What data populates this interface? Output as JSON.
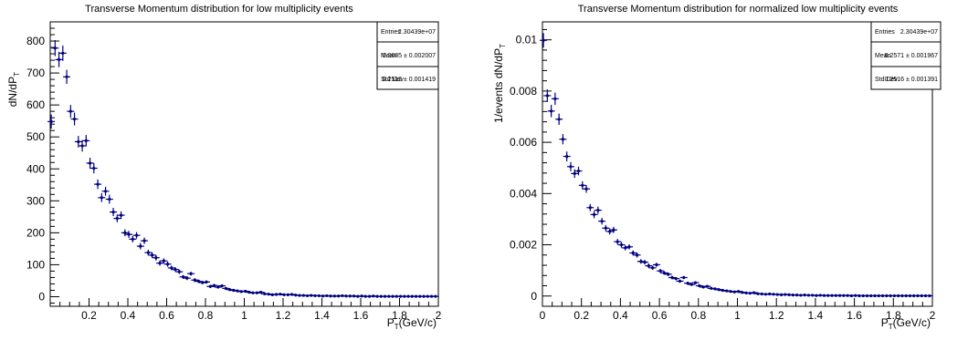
{
  "chart_data": [
    {
      "type": "scatter",
      "title": "Transverse Momentum distribution for low multiplicity events",
      "xlabel": "P_T(GeV/c)",
      "xlabel_main": "P",
      "xlabel_sub": "T",
      "xlabel_unit": "(GeV/c)",
      "ylabel": "dN/dP_T",
      "ylabel_main": "dN/dP",
      "ylabel_sub": "T",
      "xlim": [
        0.0,
        2.0
      ],
      "ylim": [
        -30,
        860
      ],
      "xticks": [
        "0.2",
        "0.4",
        "0.6",
        "0.8",
        "1",
        "1.2",
        "1.4",
        "1.6",
        "1.8",
        "2"
      ],
      "yticks": [
        "0",
        "100",
        "200",
        "300",
        "400",
        "500",
        "600",
        "700",
        "800"
      ],
      "xtick_values": [
        0.2,
        0.4,
        0.6,
        0.8,
        1.0,
        1.2,
        1.4,
        1.6,
        1.8,
        2.0
      ],
      "ytick_values": [
        0,
        100,
        200,
        300,
        400,
        500,
        600,
        700,
        800
      ],
      "stats": {
        "entries_label": "Entries",
        "entries_value": "2.30439e+07",
        "mean_label": "Mean",
        "mean_value": "0.2685 ± 0.002007",
        "std_label": "Std Dev",
        "std_value": "0.2512 ± 0.001419"
      },
      "points": [
        {
          "x": 0.005,
          "y": 548,
          "e": 22
        },
        {
          "x": 0.025,
          "y": 778,
          "e": 25
        },
        {
          "x": 0.045,
          "y": 742,
          "e": 24
        },
        {
          "x": 0.065,
          "y": 762,
          "e": 24
        },
        {
          "x": 0.085,
          "y": 688,
          "e": 22
        },
        {
          "x": 0.105,
          "y": 580,
          "e": 20
        },
        {
          "x": 0.125,
          "y": 556,
          "e": 20
        },
        {
          "x": 0.145,
          "y": 485,
          "e": 18
        },
        {
          "x": 0.165,
          "y": 472,
          "e": 18
        },
        {
          "x": 0.185,
          "y": 488,
          "e": 18
        },
        {
          "x": 0.205,
          "y": 418,
          "e": 17
        },
        {
          "x": 0.225,
          "y": 402,
          "e": 16
        },
        {
          "x": 0.245,
          "y": 352,
          "e": 15
        },
        {
          "x": 0.265,
          "y": 310,
          "e": 14
        },
        {
          "x": 0.285,
          "y": 330,
          "e": 14
        },
        {
          "x": 0.305,
          "y": 305,
          "e": 14
        },
        {
          "x": 0.325,
          "y": 265,
          "e": 13
        },
        {
          "x": 0.345,
          "y": 245,
          "e": 12
        },
        {
          "x": 0.365,
          "y": 255,
          "e": 12
        },
        {
          "x": 0.385,
          "y": 200,
          "e": 11
        },
        {
          "x": 0.405,
          "y": 195,
          "e": 11
        },
        {
          "x": 0.425,
          "y": 180,
          "e": 10
        },
        {
          "x": 0.445,
          "y": 192,
          "e": 10
        },
        {
          "x": 0.465,
          "y": 158,
          "e": 10
        },
        {
          "x": 0.485,
          "y": 175,
          "e": 10
        },
        {
          "x": 0.505,
          "y": 138,
          "e": 9
        },
        {
          "x": 0.525,
          "y": 130,
          "e": 9
        },
        {
          "x": 0.545,
          "y": 122,
          "e": 9
        },
        {
          "x": 0.565,
          "y": 105,
          "e": 8
        },
        {
          "x": 0.585,
          "y": 112,
          "e": 8
        },
        {
          "x": 0.605,
          "y": 102,
          "e": 8
        },
        {
          "x": 0.625,
          "y": 90,
          "e": 7
        },
        {
          "x": 0.645,
          "y": 85,
          "e": 7
        },
        {
          "x": 0.665,
          "y": 78,
          "e": 7
        },
        {
          "x": 0.685,
          "y": 62,
          "e": 6
        },
        {
          "x": 0.705,
          "y": 58,
          "e": 6
        },
        {
          "x": 0.725,
          "y": 72,
          "e": 6
        },
        {
          "x": 0.745,
          "y": 52,
          "e": 6
        },
        {
          "x": 0.765,
          "y": 48,
          "e": 5
        },
        {
          "x": 0.785,
          "y": 44,
          "e": 5
        },
        {
          "x": 0.805,
          "y": 46,
          "e": 5
        },
        {
          "x": 0.825,
          "y": 32,
          "e": 5
        },
        {
          "x": 0.845,
          "y": 35,
          "e": 5
        },
        {
          "x": 0.865,
          "y": 30,
          "e": 4
        },
        {
          "x": 0.885,
          "y": 34,
          "e": 4
        },
        {
          "x": 0.905,
          "y": 26,
          "e": 4
        },
        {
          "x": 0.925,
          "y": 22,
          "e": 4
        },
        {
          "x": 0.945,
          "y": 20,
          "e": 4
        },
        {
          "x": 0.965,
          "y": 18,
          "e": 4
        },
        {
          "x": 0.985,
          "y": 16,
          "e": 3
        },
        {
          "x": 1.005,
          "y": 17,
          "e": 3
        },
        {
          "x": 1.025,
          "y": 14,
          "e": 3
        },
        {
          "x": 1.045,
          "y": 12,
          "e": 3
        },
        {
          "x": 1.065,
          "y": 12,
          "e": 3
        },
        {
          "x": 1.085,
          "y": 14,
          "e": 3
        },
        {
          "x": 1.105,
          "y": 9,
          "e": 3
        },
        {
          "x": 1.125,
          "y": 8,
          "e": 3
        },
        {
          "x": 1.145,
          "y": 6,
          "e": 3
        },
        {
          "x": 1.165,
          "y": 7,
          "e": 3
        },
        {
          "x": 1.185,
          "y": 8,
          "e": 3
        },
        {
          "x": 1.205,
          "y": 6,
          "e": 2
        },
        {
          "x": 1.225,
          "y": 6,
          "e": 2
        },
        {
          "x": 1.245,
          "y": 7,
          "e": 2
        },
        {
          "x": 1.265,
          "y": 5,
          "e": 2
        },
        {
          "x": 1.285,
          "y": 4,
          "e": 2
        },
        {
          "x": 1.305,
          "y": 4,
          "e": 2
        },
        {
          "x": 1.325,
          "y": 3,
          "e": 2
        },
        {
          "x": 1.345,
          "y": 4,
          "e": 2
        },
        {
          "x": 1.365,
          "y": 3,
          "e": 2
        },
        {
          "x": 1.385,
          "y": 3,
          "e": 2
        },
        {
          "x": 1.405,
          "y": 2,
          "e": 2
        },
        {
          "x": 1.425,
          "y": 3,
          "e": 2
        },
        {
          "x": 1.445,
          "y": 2,
          "e": 2
        },
        {
          "x": 1.465,
          "y": 2,
          "e": 2
        },
        {
          "x": 1.485,
          "y": 2,
          "e": 2
        },
        {
          "x": 1.505,
          "y": 3,
          "e": 2
        },
        {
          "x": 1.525,
          "y": 2,
          "e": 2
        },
        {
          "x": 1.545,
          "y": 2,
          "e": 2
        },
        {
          "x": 1.565,
          "y": 2,
          "e": 2
        },
        {
          "x": 1.585,
          "y": 1,
          "e": 1
        },
        {
          "x": 1.605,
          "y": 2,
          "e": 1
        },
        {
          "x": 1.625,
          "y": 1,
          "e": 1
        },
        {
          "x": 1.645,
          "y": 1,
          "e": 1
        },
        {
          "x": 1.665,
          "y": 2,
          "e": 1
        },
        {
          "x": 1.685,
          "y": 1,
          "e": 1
        },
        {
          "x": 1.705,
          "y": 1,
          "e": 1
        },
        {
          "x": 1.725,
          "y": 1,
          "e": 1
        },
        {
          "x": 1.745,
          "y": 1,
          "e": 1
        },
        {
          "x": 1.765,
          "y": 1,
          "e": 1
        },
        {
          "x": 1.785,
          "y": 1,
          "e": 1
        },
        {
          "x": 1.805,
          "y": 1,
          "e": 1
        },
        {
          "x": 1.825,
          "y": 1,
          "e": 1
        },
        {
          "x": 1.845,
          "y": 1,
          "e": 1
        },
        {
          "x": 1.865,
          "y": 1,
          "e": 1
        },
        {
          "x": 1.885,
          "y": 1,
          "e": 1
        },
        {
          "x": 1.905,
          "y": 1,
          "e": 1
        },
        {
          "x": 1.925,
          "y": 1,
          "e": 1
        },
        {
          "x": 1.945,
          "y": 1,
          "e": 1
        },
        {
          "x": 1.965,
          "y": 1,
          "e": 1
        },
        {
          "x": 1.985,
          "y": 1,
          "e": 1
        }
      ]
    },
    {
      "type": "scatter",
      "title": "Transverse Momentum distribution for normalized low multiplicity events",
      "xlabel": "P_T(GeV/c)",
      "xlabel_main": "P",
      "xlabel_sub": "T",
      "xlabel_unit": "(GeV/c)",
      "ylabel": "1/events dN/dP_T",
      "ylabel_main": "1/events dN/dP",
      "ylabel_sub": "T",
      "xlim": [
        0.0,
        2.0
      ],
      "ylim": [
        -0.0004,
        0.0107
      ],
      "xticks": [
        "0",
        "0.2",
        "0.4",
        "0.6",
        "0.8",
        "1",
        "1.2",
        "1.4",
        "1.6",
        "1.8",
        "2"
      ],
      "yticks": [
        "0",
        "0.002",
        "0.004",
        "0.006",
        "0.008",
        "0.01"
      ],
      "xtick_values": [
        0.0,
        0.2,
        0.4,
        0.6,
        0.8,
        1.0,
        1.2,
        1.4,
        1.6,
        1.8,
        2.0
      ],
      "ytick_values": [
        0,
        0.002,
        0.004,
        0.006,
        0.008,
        0.01
      ],
      "stats": {
        "entries_label": "Entries",
        "entries_value": "2.30439e+07",
        "mean_label": "Mean",
        "mean_value": "0.2571 ± 0.001967",
        "std_label": "Std Dev",
        "std_value": "0.2516 ± 0.001391"
      },
      "points": [
        {
          "x": 0.005,
          "y": 0.00998,
          "e": 0.00028
        },
        {
          "x": 0.025,
          "y": 0.00782,
          "e": 0.00025
        },
        {
          "x": 0.045,
          "y": 0.00722,
          "e": 0.00024
        },
        {
          "x": 0.065,
          "y": 0.0077,
          "e": 0.00024
        },
        {
          "x": 0.085,
          "y": 0.0069,
          "e": 0.00022
        },
        {
          "x": 0.105,
          "y": 0.00612,
          "e": 0.0002
        },
        {
          "x": 0.125,
          "y": 0.00545,
          "e": 0.00019
        },
        {
          "x": 0.145,
          "y": 0.00505,
          "e": 0.00018
        },
        {
          "x": 0.165,
          "y": 0.00478,
          "e": 0.00017
        },
        {
          "x": 0.185,
          "y": 0.00488,
          "e": 0.00017
        },
        {
          "x": 0.205,
          "y": 0.00432,
          "e": 0.00016
        },
        {
          "x": 0.225,
          "y": 0.00418,
          "e": 0.00015
        },
        {
          "x": 0.245,
          "y": 0.00345,
          "e": 0.00014
        },
        {
          "x": 0.265,
          "y": 0.00318,
          "e": 0.00014
        },
        {
          "x": 0.285,
          "y": 0.00335,
          "e": 0.00014
        },
        {
          "x": 0.305,
          "y": 0.00292,
          "e": 0.00013
        },
        {
          "x": 0.325,
          "y": 0.00265,
          "e": 0.00012
        },
        {
          "x": 0.345,
          "y": 0.00252,
          "e": 0.00012
        },
        {
          "x": 0.365,
          "y": 0.00258,
          "e": 0.00012
        },
        {
          "x": 0.385,
          "y": 0.00212,
          "e": 0.00011
        },
        {
          "x": 0.405,
          "y": 0.002,
          "e": 0.00011
        },
        {
          "x": 0.425,
          "y": 0.00188,
          "e": 0.0001
        },
        {
          "x": 0.445,
          "y": 0.00192,
          "e": 0.0001
        },
        {
          "x": 0.465,
          "y": 0.00168,
          "e": 0.0001
        },
        {
          "x": 0.485,
          "y": 0.0016,
          "e": 0.0001
        },
        {
          "x": 0.505,
          "y": 0.00135,
          "e": 9e-05
        },
        {
          "x": 0.525,
          "y": 0.00132,
          "e": 9e-05
        },
        {
          "x": 0.545,
          "y": 0.00118,
          "e": 9e-05
        },
        {
          "x": 0.565,
          "y": 0.0011,
          "e": 8e-05
        },
        {
          "x": 0.585,
          "y": 0.00122,
          "e": 8e-05
        },
        {
          "x": 0.605,
          "y": 0.00098,
          "e": 8e-05
        },
        {
          "x": 0.625,
          "y": 0.0009,
          "e": 7e-05
        },
        {
          "x": 0.645,
          "y": 0.00085,
          "e": 7e-05
        },
        {
          "x": 0.665,
          "y": 0.00072,
          "e": 7e-05
        },
        {
          "x": 0.685,
          "y": 0.00068,
          "e": 6e-05
        },
        {
          "x": 0.705,
          "y": 0.00058,
          "e": 6e-05
        },
        {
          "x": 0.725,
          "y": 0.00072,
          "e": 6e-05
        },
        {
          "x": 0.745,
          "y": 0.0005,
          "e": 6e-05
        },
        {
          "x": 0.765,
          "y": 0.00045,
          "e": 5e-05
        },
        {
          "x": 0.785,
          "y": 0.00052,
          "e": 5e-05
        },
        {
          "x": 0.805,
          "y": 0.0004,
          "e": 5e-05
        },
        {
          "x": 0.825,
          "y": 0.00035,
          "e": 5e-05
        },
        {
          "x": 0.845,
          "y": 0.00038,
          "e": 5e-05
        },
        {
          "x": 0.865,
          "y": 0.0003,
          "e": 4e-05
        },
        {
          "x": 0.885,
          "y": 0.00028,
          "e": 4e-05
        },
        {
          "x": 0.905,
          "y": 0.00025,
          "e": 4e-05
        },
        {
          "x": 0.925,
          "y": 0.00022,
          "e": 4e-05
        },
        {
          "x": 0.945,
          "y": 0.0002,
          "e": 4e-05
        },
        {
          "x": 0.965,
          "y": 0.00018,
          "e": 4e-05
        },
        {
          "x": 0.985,
          "y": 0.00016,
          "e": 3e-05
        },
        {
          "x": 1.005,
          "y": 0.00018,
          "e": 3e-05
        },
        {
          "x": 1.025,
          "y": 0.00014,
          "e": 3e-05
        },
        {
          "x": 1.045,
          "y": 0.00012,
          "e": 3e-05
        },
        {
          "x": 1.065,
          "y": 0.00011,
          "e": 3e-05
        },
        {
          "x": 1.085,
          "y": 0.00013,
          "e": 3e-05
        },
        {
          "x": 1.105,
          "y": 9e-05,
          "e": 3e-05
        },
        {
          "x": 1.125,
          "y": 8e-05,
          "e": 3e-05
        },
        {
          "x": 1.145,
          "y": 7e-05,
          "e": 3e-05
        },
        {
          "x": 1.165,
          "y": 8e-05,
          "e": 3e-05
        },
        {
          "x": 1.185,
          "y": 7e-05,
          "e": 3e-05
        },
        {
          "x": 1.205,
          "y": 6e-05,
          "e": 2e-05
        },
        {
          "x": 1.225,
          "y": 5e-05,
          "e": 2e-05
        },
        {
          "x": 1.245,
          "y": 6e-05,
          "e": 2e-05
        },
        {
          "x": 1.265,
          "y": 5e-05,
          "e": 2e-05
        },
        {
          "x": 1.285,
          "y": 4e-05,
          "e": 2e-05
        },
        {
          "x": 1.305,
          "y": 4e-05,
          "e": 2e-05
        },
        {
          "x": 1.325,
          "y": 3e-05,
          "e": 2e-05
        },
        {
          "x": 1.345,
          "y": 4e-05,
          "e": 2e-05
        },
        {
          "x": 1.365,
          "y": 3e-05,
          "e": 2e-05
        },
        {
          "x": 1.385,
          "y": 3e-05,
          "e": 2e-05
        },
        {
          "x": 1.405,
          "y": 2e-05,
          "e": 2e-05
        },
        {
          "x": 1.425,
          "y": 3e-05,
          "e": 2e-05
        },
        {
          "x": 1.445,
          "y": 2e-05,
          "e": 2e-05
        },
        {
          "x": 1.465,
          "y": 2e-05,
          "e": 2e-05
        },
        {
          "x": 1.485,
          "y": 2e-05,
          "e": 2e-05
        },
        {
          "x": 1.505,
          "y": 2e-05,
          "e": 2e-05
        },
        {
          "x": 1.525,
          "y": 2e-05,
          "e": 2e-05
        },
        {
          "x": 1.545,
          "y": 2e-05,
          "e": 2e-05
        },
        {
          "x": 1.565,
          "y": 2e-05,
          "e": 1e-05
        },
        {
          "x": 1.585,
          "y": 1e-05,
          "e": 1e-05
        },
        {
          "x": 1.605,
          "y": 2e-05,
          "e": 1e-05
        },
        {
          "x": 1.625,
          "y": 1e-05,
          "e": 1e-05
        },
        {
          "x": 1.645,
          "y": 1e-05,
          "e": 1e-05
        },
        {
          "x": 1.665,
          "y": 1e-05,
          "e": 1e-05
        },
        {
          "x": 1.685,
          "y": 1e-05,
          "e": 1e-05
        },
        {
          "x": 1.705,
          "y": 1e-05,
          "e": 1e-05
        },
        {
          "x": 1.725,
          "y": 1e-05,
          "e": 1e-05
        },
        {
          "x": 1.745,
          "y": 1e-05,
          "e": 1e-05
        },
        {
          "x": 1.765,
          "y": 1e-05,
          "e": 1e-05
        },
        {
          "x": 1.785,
          "y": 1e-05,
          "e": 1e-05
        },
        {
          "x": 1.805,
          "y": 1e-05,
          "e": 1e-05
        },
        {
          "x": 1.825,
          "y": 1e-05,
          "e": 1e-05
        },
        {
          "x": 1.845,
          "y": 1e-05,
          "e": 1e-05
        },
        {
          "x": 1.865,
          "y": 1e-05,
          "e": 1e-05
        },
        {
          "x": 1.885,
          "y": 1e-05,
          "e": 1e-05
        },
        {
          "x": 1.905,
          "y": 1e-05,
          "e": 1e-05
        },
        {
          "x": 1.925,
          "y": 1e-05,
          "e": 1e-05
        },
        {
          "x": 1.945,
          "y": 1e-05,
          "e": 1e-05
        },
        {
          "x": 1.965,
          "y": 1e-05,
          "e": 1e-05
        },
        {
          "x": 1.985,
          "y": 1e-05,
          "e": 1e-05
        }
      ]
    }
  ],
  "colors": {
    "marker": "#000080",
    "frame": "#000000",
    "background": "#ffffff"
  }
}
